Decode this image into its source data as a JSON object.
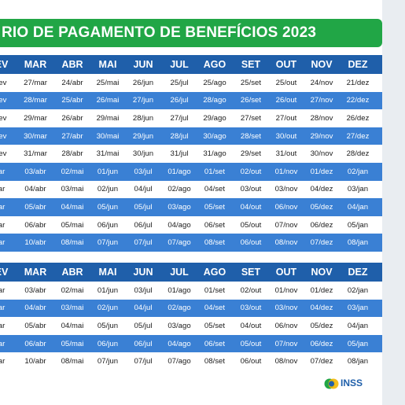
{
  "title": "RIO DE PAGAMENTO DE BENEFÍCIOS 2023",
  "months": [
    "EV",
    "MAR",
    "ABR",
    "MAI",
    "JUN",
    "JUL",
    "AGO",
    "SET",
    "OUT",
    "NOV",
    "DEZ"
  ],
  "table1_rows": [
    {
      "style": "white",
      "cells": [
        "fev",
        "27/mar",
        "24/abr",
        "25/mai",
        "26/jun",
        "25/jul",
        "25/ago",
        "25/set",
        "25/out",
        "24/nov",
        "21/dez"
      ]
    },
    {
      "style": "blue",
      "cells": [
        "fev",
        "28/mar",
        "25/abr",
        "26/mai",
        "27/jun",
        "26/jul",
        "28/ago",
        "26/set",
        "26/out",
        "27/nov",
        "22/dez"
      ]
    },
    {
      "style": "white",
      "cells": [
        "fev",
        "29/mar",
        "26/abr",
        "29/mai",
        "28/jun",
        "27/jul",
        "29/ago",
        "27/set",
        "27/out",
        "28/nov",
        "26/dez"
      ]
    },
    {
      "style": "blue",
      "cells": [
        "fev",
        "30/mar",
        "27/abr",
        "30/mai",
        "29/jun",
        "28/jul",
        "30/ago",
        "28/set",
        "30/out",
        "29/nov",
        "27/dez"
      ]
    },
    {
      "style": "white",
      "cells": [
        "fev",
        "31/mar",
        "28/abr",
        "31/mai",
        "30/jun",
        "31/jul",
        "31/ago",
        "29/set",
        "31/out",
        "30/nov",
        "28/dez"
      ]
    },
    {
      "style": "blue",
      "cells": [
        "ar",
        "03/abr",
        "02/mai",
        "01/jun",
        "03/jul",
        "01/ago",
        "01/set",
        "02/out",
        "01/nov",
        "01/dez",
        "02/jan"
      ]
    },
    {
      "style": "white",
      "cells": [
        "ar",
        "04/abr",
        "03/mai",
        "02/jun",
        "04/jul",
        "02/ago",
        "04/set",
        "03/out",
        "03/nov",
        "04/dez",
        "03/jan"
      ]
    },
    {
      "style": "blue",
      "cells": [
        "ar",
        "05/abr",
        "04/mai",
        "05/jun",
        "05/jul",
        "03/ago",
        "05/set",
        "04/out",
        "06/nov",
        "05/dez",
        "04/jan"
      ]
    },
    {
      "style": "white",
      "cells": [
        "ar",
        "06/abr",
        "05/mai",
        "06/jun",
        "06/jul",
        "04/ago",
        "06/set",
        "05/out",
        "07/nov",
        "06/dez",
        "05/jan"
      ]
    },
    {
      "style": "blue",
      "cells": [
        "ar",
        "10/abr",
        "08/mai",
        "07/jun",
        "07/jul",
        "07/ago",
        "08/set",
        "06/out",
        "08/nov",
        "07/dez",
        "08/jan"
      ]
    }
  ],
  "table2_rows": [
    {
      "style": "white",
      "cells": [
        "ar",
        "03/abr",
        "02/mai",
        "01/jun",
        "03/jul",
        "01/ago",
        "01/set",
        "02/out",
        "01/nov",
        "01/dez",
        "02/jan"
      ]
    },
    {
      "style": "blue",
      "cells": [
        "ar",
        "04/abr",
        "03/mai",
        "02/jun",
        "04/jul",
        "02/ago",
        "04/set",
        "03/out",
        "03/nov",
        "04/dez",
        "03/jan"
      ]
    },
    {
      "style": "white",
      "cells": [
        "ar",
        "05/abr",
        "04/mai",
        "05/jun",
        "05/jul",
        "03/ago",
        "05/set",
        "04/out",
        "06/nov",
        "05/dez",
        "04/jan"
      ]
    },
    {
      "style": "blue",
      "cells": [
        "ar",
        "06/abr",
        "05/mai",
        "06/jun",
        "06/jul",
        "04/ago",
        "06/set",
        "05/out",
        "07/nov",
        "06/dez",
        "05/jan"
      ]
    },
    {
      "style": "white",
      "cells": [
        "ar",
        "10/abr",
        "08/mai",
        "07/jun",
        "07/jul",
        "07/ago",
        "08/set",
        "06/out",
        "08/nov",
        "07/dez",
        "08/jan"
      ]
    }
  ],
  "logo_text": "INSS",
  "colors": {
    "green": "#21a646",
    "header_blue": "#1f5faa",
    "row_blue": "#3a80d4"
  }
}
